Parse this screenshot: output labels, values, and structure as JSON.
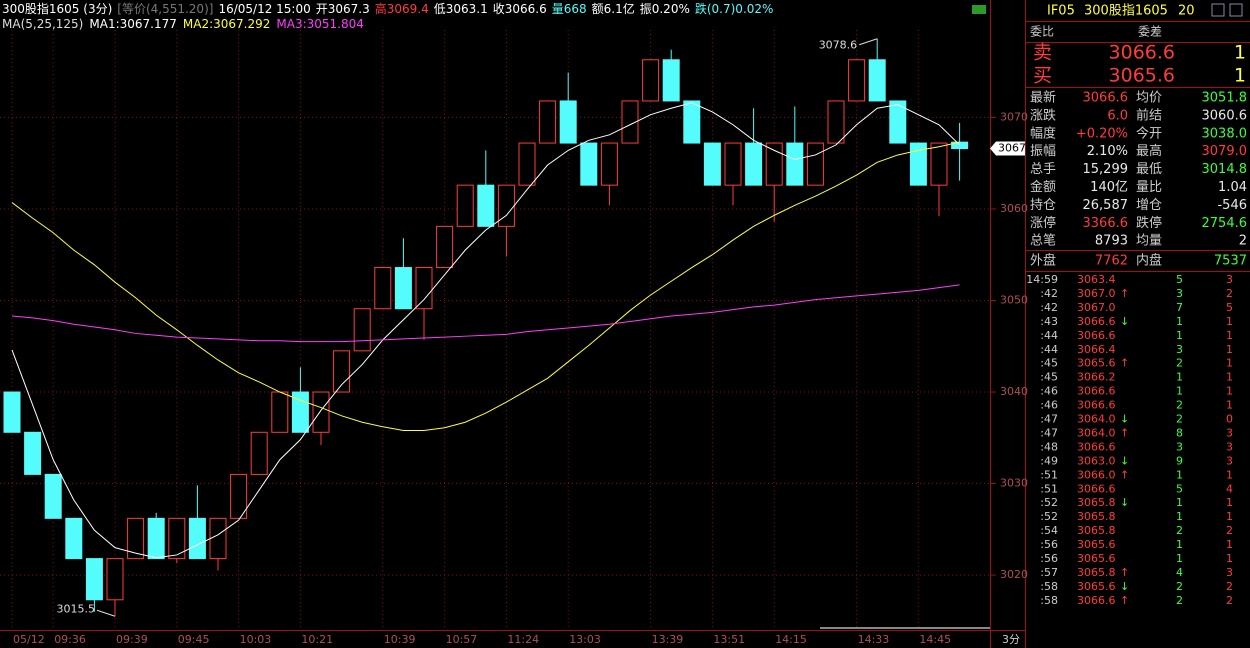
{
  "header": {
    "items": [
      "300股指1605 (3分)",
      "[等价(4,551.20)]",
      "16/05/12 15:00",
      "开3067.3",
      "高3069.4",
      "低3063.1",
      "收3066.6",
      "量668",
      "额6.1亿",
      "振0.20%",
      "跌(0.7)0.02%"
    ]
  },
  "chart_data": {
    "type": "candlestick",
    "indicator": "MA(5,25,125)",
    "categories": [
      "05/12",
      null,
      "09:36",
      null,
      null,
      "09:39",
      null,
      null,
      "09:45",
      null,
      null,
      "10:03",
      null,
      null,
      "10:21",
      null,
      null,
      null,
      "10:39",
      null,
      null,
      "10:57",
      null,
      null,
      "11:24",
      null,
      null,
      "13:03",
      null,
      null,
      null,
      "13:39",
      null,
      null,
      "13:51",
      null,
      null,
      "14:15",
      null,
      null,
      null,
      "14:33",
      null,
      null,
      "14:45",
      null,
      null
    ],
    "open": [
      3040.0,
      3035.6,
      3031.0,
      3026.2,
      3021.8,
      3017.3,
      3021.8,
      3026.2,
      3021.8,
      3026.2,
      3021.8,
      3026.2,
      3031.0,
      3035.6,
      3040.0,
      3035.6,
      3040.0,
      3044.5,
      3049.1,
      3053.6,
      3049.1,
      3053.6,
      3058.1,
      3062.6,
      3058.1,
      3062.6,
      3067.2,
      3071.8,
      3067.2,
      3062.6,
      3067.2,
      3071.8,
      3076.3,
      3071.8,
      3067.2,
      3062.6,
      3067.2,
      3062.6,
      3067.2,
      3062.6,
      3067.2,
      3071.8,
      3076.3,
      3071.8,
      3067.2,
      3062.6,
      3067.3
    ],
    "close": [
      3035.6,
      3031.0,
      3026.2,
      3021.8,
      3017.3,
      3021.8,
      3026.2,
      3021.8,
      3026.2,
      3021.8,
      3026.2,
      3031.0,
      3035.6,
      3040.0,
      3035.6,
      3040.0,
      3044.5,
      3049.1,
      3053.6,
      3049.1,
      3053.6,
      3058.1,
      3062.6,
      3058.1,
      3062.6,
      3067.2,
      3071.8,
      3067.2,
      3062.6,
      3067.2,
      3071.8,
      3076.3,
      3071.8,
      3067.2,
      3062.6,
      3067.2,
      3062.6,
      3067.2,
      3062.6,
      3067.2,
      3071.8,
      3076.3,
      3071.8,
      3067.2,
      3062.6,
      3067.2,
      3066.6
    ],
    "high": [
      3040.0,
      3035.6,
      3031.0,
      3026.2,
      3021.8,
      3021.8,
      3026.2,
      3026.8,
      3026.2,
      3029.8,
      3026.2,
      3031.0,
      3035.6,
      3040.0,
      3042.7,
      3040.0,
      3044.5,
      3049.1,
      3053.6,
      3056.8,
      3053.6,
      3058.1,
      3062.6,
      3066.4,
      3062.6,
      3067.2,
      3071.8,
      3074.9,
      3067.2,
      3067.2,
      3071.8,
      3076.3,
      3077.4,
      3071.8,
      3067.2,
      3067.2,
      3071.0,
      3067.2,
      3071.2,
      3067.2,
      3071.8,
      3076.3,
      3078.6,
      3071.8,
      3067.2,
      3067.2,
      3069.4
    ],
    "low": [
      3035.6,
      3031.0,
      3026.2,
      3021.8,
      3016.0,
      3015.5,
      3021.8,
      3021.8,
      3021.3,
      3021.8,
      3020.5,
      3026.2,
      3031.0,
      3035.6,
      3035.6,
      3034.2,
      3040.0,
      3044.5,
      3049.1,
      3049.1,
      3045.7,
      3053.6,
      3058.1,
      3058.1,
      3054.8,
      3062.6,
      3067.2,
      3067.2,
      3062.6,
      3060.4,
      3067.2,
      3071.8,
      3071.8,
      3067.2,
      3062.6,
      3060.4,
      3062.6,
      3058.6,
      3062.6,
      3062.6,
      3067.2,
      3071.8,
      3071.8,
      3067.2,
      3062.6,
      3059.2,
      3063.1
    ],
    "high_labels": [
      null,
      null,
      null,
      null,
      null,
      null,
      null,
      null,
      null,
      null,
      null,
      null,
      null,
      null,
      null,
      null,
      null,
      null,
      null,
      null,
      null,
      null,
      null,
      null,
      null,
      null,
      null,
      null,
      null,
      null,
      null,
      null,
      null,
      null,
      null,
      null,
      null,
      null,
      null,
      null,
      null,
      null,
      "3078.6",
      null,
      null,
      null,
      null
    ],
    "low_labels": [
      null,
      null,
      null,
      null,
      null,
      "3015.5",
      null,
      null,
      null,
      null,
      null,
      null,
      null,
      null,
      null,
      null,
      null,
      null,
      null,
      null,
      null,
      null,
      null,
      null,
      null,
      null,
      null,
      null,
      null,
      null,
      null,
      null,
      null,
      null,
      null,
      null,
      null,
      null,
      null,
      null,
      null,
      null,
      null,
      null,
      null,
      null,
      null
    ],
    "last_label": "3067",
    "x_unit": "3分",
    "up_color": "#ff3c3c",
    "down_color": "#54fcfc",
    "lines": [
      {
        "name": "MA1:3067.177",
        "color": "#ffffff",
        "values": [
          3044.6,
          3038.6,
          3032.6,
          3028.2,
          3024.9,
          3023.0,
          3022.4,
          3021.9,
          3022.2,
          3023.3,
          3024.4,
          3026.0,
          3029.3,
          3032.6,
          3034.8,
          3038.0,
          3040.8,
          3043.0,
          3045.7,
          3047.9,
          3050.1,
          3052.8,
          3055.5,
          3057.7,
          3059.3,
          3062.1,
          3064.8,
          3066.4,
          3067.5,
          3068.1,
          3069.2,
          3070.3,
          3071.0,
          3071.6,
          3070.6,
          3069.2,
          3067.5,
          3066.4,
          3065.4,
          3065.9,
          3067.0,
          3069.2,
          3071.0,
          3071.4,
          3070.3,
          3069.2,
          3067.0
        ]
      },
      {
        "name": "MA2:3067.292",
        "color": "#ffff3c",
        "values": [
          3060.7,
          3059.0,
          3057.4,
          3055.5,
          3053.9,
          3052.0,
          3050.3,
          3048.4,
          3046.8,
          3045.1,
          3043.5,
          3042.1,
          3041.1,
          3040.0,
          3039.1,
          3038.3,
          3037.4,
          3036.7,
          3036.2,
          3035.8,
          3035.8,
          3036.1,
          3036.7,
          3037.7,
          3038.9,
          3040.2,
          3041.5,
          3043.3,
          3045.1,
          3047.0,
          3048.9,
          3050.6,
          3052.1,
          3053.6,
          3055.0,
          3056.6,
          3058.1,
          3059.3,
          3060.4,
          3061.4,
          3062.5,
          3063.7,
          3065.1,
          3065.9,
          3066.4,
          3066.8,
          3067.3
        ]
      },
      {
        "name": "MA3:3051.804",
        "color": "#ff3cff",
        "values": [
          3048.3,
          3048.1,
          3047.8,
          3047.4,
          3047.1,
          3046.8,
          3046.4,
          3046.2,
          3046.0,
          3045.9,
          3045.8,
          3045.7,
          3045.6,
          3045.6,
          3045.5,
          3045.5,
          3045.5,
          3045.6,
          3045.7,
          3045.8,
          3045.9,
          3046.0,
          3046.1,
          3046.2,
          3046.3,
          3046.6,
          3046.8,
          3047.0,
          3047.2,
          3047.4,
          3047.7,
          3048.0,
          3048.3,
          3048.5,
          3048.7,
          3049.0,
          3049.3,
          3049.5,
          3049.8,
          3050.1,
          3050.3,
          3050.5,
          3050.7,
          3050.9,
          3051.1,
          3051.4,
          3051.7
        ]
      }
    ],
    "ylim": [
      3014,
      3081.3
    ],
    "yticks": [
      3020,
      3030,
      3040,
      3050,
      3060,
      3070
    ],
    "grid": true
  },
  "panel": {
    "code": "IF05",
    "name": "300股指1605",
    "num": "20",
    "ratio_label": "委比",
    "diff_label": "委差",
    "ask": {
      "label": "卖",
      "price": "3066.6",
      "vol": "1"
    },
    "bid": {
      "label": "买",
      "price": "3065.6",
      "vol": "1"
    },
    "stats": [
      [
        "最新",
        "3066.6",
        "均价",
        "3051.8"
      ],
      [
        "涨跌",
        "6.0",
        "前结",
        "3060.6"
      ],
      [
        "幅度",
        "+0.20%",
        "今开",
        "3038.0"
      ],
      [
        "振幅",
        "2.10%",
        "最高",
        "3079.0"
      ],
      [
        "总手",
        "15,299",
        "最低",
        "3014.8"
      ],
      [
        "金额",
        "140亿",
        "量比",
        "1.04"
      ],
      [
        "持仓",
        "26,587",
        "增仓",
        "-546"
      ],
      [
        "涨停",
        "3366.6",
        "跌停",
        "2754.6"
      ],
      [
        "总笔",
        "8793",
        "均量",
        "2"
      ]
    ],
    "outer": [
      "外盘",
      "7762",
      "内盘",
      "7537"
    ],
    "ticks": [
      [
        "14:59",
        "3063.4",
        "",
        "5",
        "3"
      ],
      [
        ":42",
        "3067.0",
        "↑",
        "3",
        "2"
      ],
      [
        ":42",
        "3067.0",
        "",
        "7",
        "5"
      ],
      [
        ":43",
        "3066.6",
        "↓",
        "1",
        "1"
      ],
      [
        ":44",
        "3066.6",
        "",
        "1",
        "1"
      ],
      [
        ":44",
        "3066.4",
        "",
        "3",
        "1"
      ],
      [
        ":45",
        "3065.6",
        "↑",
        "2",
        "1"
      ],
      [
        ":45",
        "3066.2",
        "",
        "1",
        "1"
      ],
      [
        ":46",
        "3066.6",
        "",
        "1",
        "1"
      ],
      [
        ":46",
        "3066.6",
        "",
        "2",
        "1"
      ],
      [
        ":47",
        "3064.0",
        "↓",
        "2",
        "0"
      ],
      [
        ":47",
        "3064.0",
        "↑",
        "8",
        "3"
      ],
      [
        ":48",
        "3066.6",
        "",
        "3",
        "3"
      ],
      [
        ":49",
        "3063.0",
        "↓",
        "9",
        "3"
      ],
      [
        ":51",
        "3066.0",
        "↑",
        "1",
        "1"
      ],
      [
        ":51",
        "3066.6",
        "",
        "5",
        "4"
      ],
      [
        ":52",
        "3065.8",
        "↓",
        "1",
        "1"
      ],
      [
        ":52",
        "3065.8",
        "",
        "1",
        "1"
      ],
      [
        ":54",
        "3065.8",
        "",
        "2",
        "2"
      ],
      [
        ":56",
        "3065.6",
        "",
        "1",
        "1"
      ],
      [
        ":56",
        "3065.6",
        "",
        "1",
        "1"
      ],
      [
        ":57",
        "3065.8",
        "↑",
        "4",
        "3"
      ],
      [
        ":58",
        "3065.6",
        "↓",
        "2",
        "2"
      ],
      [
        ":58",
        "3066.6",
        "↑",
        "2",
        "2"
      ]
    ]
  }
}
